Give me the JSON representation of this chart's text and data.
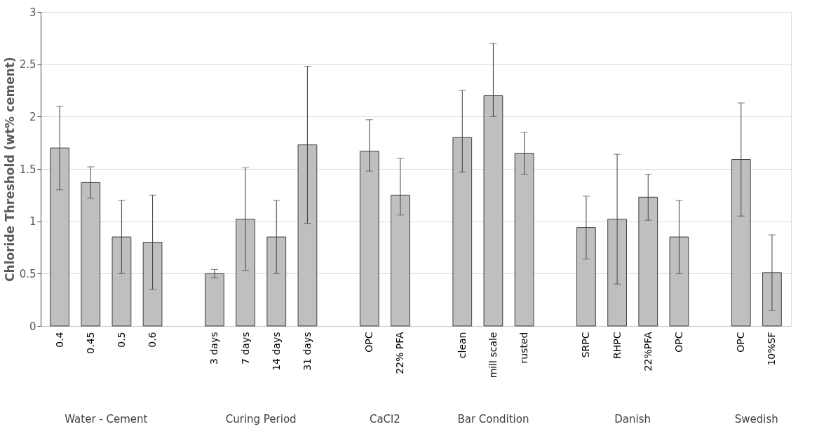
{
  "chart_data": {
    "type": "bar",
    "ylabel": "Chloride Threshold (wt% cement)",
    "categories": [
      "0.4",
      "0.45",
      "0.5",
      "0.6",
      null,
      "3 days",
      "7 days",
      "14 days",
      "31 days",
      null,
      "OPC",
      "22% PFA",
      null,
      "clean",
      "mill scale",
      "rusted",
      null,
      "SRPC",
      "RHPC",
      "22%PFA",
      "OPC",
      null,
      "OPC",
      "10%SF"
    ],
    "values": [
      1.7,
      1.37,
      0.85,
      0.8,
      null,
      0.5,
      1.02,
      0.85,
      1.73,
      null,
      1.67,
      1.25,
      null,
      1.8,
      2.2,
      1.65,
      null,
      0.94,
      1.02,
      1.23,
      0.85,
      null,
      1.59,
      0.51
    ],
    "errors": [
      [
        1.3,
        2.1
      ],
      [
        1.22,
        1.52
      ],
      [
        0.5,
        1.2
      ],
      [
        0.35,
        1.25
      ],
      null,
      [
        0.46,
        0.54
      ],
      [
        0.53,
        1.51
      ],
      [
        0.5,
        1.2
      ],
      [
        0.98,
        2.48
      ],
      null,
      [
        1.48,
        1.97
      ],
      [
        1.06,
        1.6
      ],
      null,
      [
        1.47,
        2.25
      ],
      [
        2.0,
        2.7
      ],
      [
        1.45,
        1.85
      ],
      null,
      [
        0.64,
        1.24
      ],
      [
        0.4,
        1.64
      ],
      [
        1.01,
        1.45
      ],
      [
        0.5,
        1.2
      ],
      null,
      [
        1.05,
        2.13
      ],
      [
        0.15,
        0.87
      ]
    ],
    "color": "#bfbfbf",
    "ylim": [
      0,
      3
    ],
    "yticks": [
      0,
      0.5,
      1,
      1.5,
      2,
      2.5,
      3
    ],
    "grid": "y",
    "annotations": [
      "Water - Cement",
      "Curing Period",
      "CaCl2",
      "Bar Condition",
      "Danish",
      "Swedish"
    ]
  }
}
